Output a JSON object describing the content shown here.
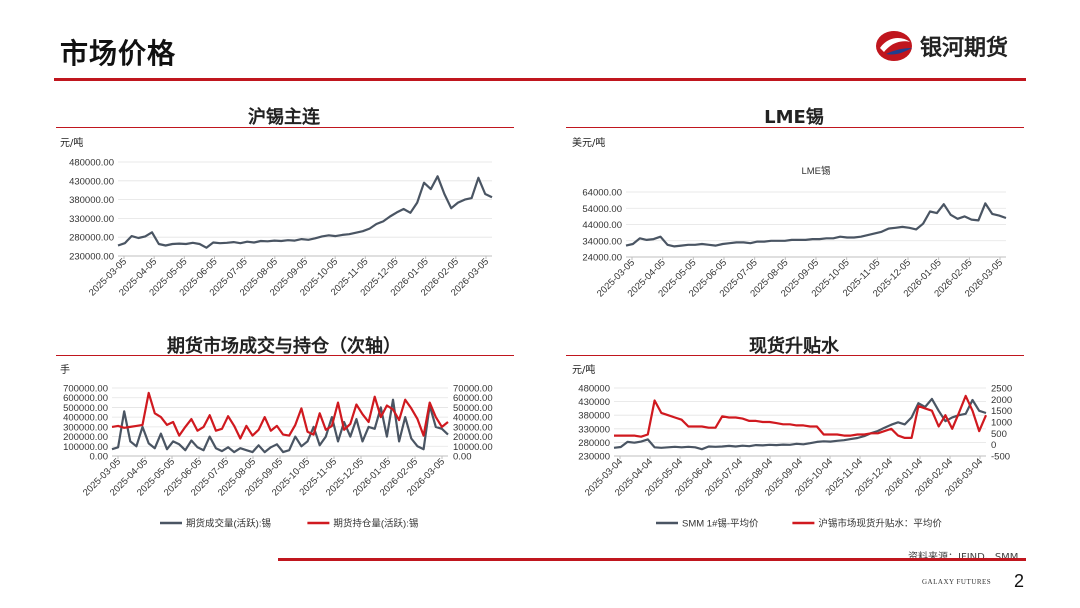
{
  "page": {
    "title": "市场价格",
    "brand": "银河期货",
    "source": "资料来源：IFIND、SMM",
    "footer_brand": "GALAXY FUTURES",
    "page_number": "2"
  },
  "colors": {
    "accent": "#c0161e",
    "series_dark": "#4a5563",
    "series_red": "#d0191f"
  },
  "panels": [
    {
      "title": "沪锡主连",
      "unit": "元/吨"
    },
    {
      "title": "LME锡",
      "unit": "美元/吨"
    },
    {
      "title": "期货市场成交与持仓（次轴）",
      "unit": "手"
    },
    {
      "title": "现货升贴水",
      "unit": "元/吨"
    }
  ],
  "chart_data": [
    {
      "type": "line",
      "title": "",
      "ylabel": "元/吨",
      "ylim": [
        230000,
        480000
      ],
      "yticks": [
        230000,
        280000,
        330000,
        380000,
        430000,
        480000
      ],
      "ytick_labels": [
        "230000.00",
        "280000.00",
        "330000.00",
        "380000.00",
        "430000.00",
        "480000.00"
      ],
      "x_labels": [
        "2025-03-05",
        "2025-04-05",
        "2025-05-05",
        "2025-06-05",
        "2025-07-05",
        "2025-08-05",
        "2025-09-05",
        "2025-10-05",
        "2025-11-05",
        "2025-12-05",
        "2026-01-05",
        "2026-02-05",
        "2026-03-05"
      ],
      "series": [
        {
          "values": [
            258000,
            264000,
            283000,
            278000,
            282000,
            293000,
            262000,
            258000,
            262000,
            263000,
            262000,
            265000,
            262000,
            252000,
            266000,
            264000,
            265000,
            267000,
            264000,
            268000,
            266000,
            270000,
            269000,
            271000,
            270000,
            272000,
            271000,
            275000,
            273000,
            277000,
            282000,
            285000,
            283000,
            286000,
            288000,
            292000,
            296000,
            303000,
            315000,
            322000,
            335000,
            346000,
            355000,
            345000,
            372000,
            425000,
            408000,
            442000,
            395000,
            357000,
            372000,
            380000,
            384000,
            438000,
            395000,
            386000
          ]
        }
      ]
    },
    {
      "type": "line",
      "title": "LME锡",
      "ylabel": "美元/吨",
      "ylim": [
        24000,
        64000
      ],
      "yticks": [
        24000,
        34000,
        44000,
        54000,
        64000
      ],
      "ytick_labels": [
        "24000.00",
        "34000.00",
        "44000.00",
        "54000.00",
        "64000.00"
      ],
      "x_labels": [
        "2025-03-05",
        "2025-04-05",
        "2025-05-05",
        "2025-06-05",
        "2025-07-05",
        "2025-08-05",
        "2025-09-05",
        "2025-10-05",
        "2025-11-05",
        "2025-12-05",
        "2026-01-05",
        "2026-02-05",
        "2026-03-05"
      ],
      "series": [
        {
          "values": [
            31000,
            32000,
            35500,
            34500,
            35000,
            36500,
            31500,
            30500,
            31000,
            31500,
            31500,
            32000,
            31500,
            31000,
            32000,
            32500,
            33000,
            33000,
            32500,
            33500,
            33500,
            34000,
            34000,
            34000,
            34500,
            34500,
            34500,
            35000,
            35000,
            35500,
            35500,
            36500,
            36000,
            36000,
            36500,
            37500,
            38500,
            39500,
            41500,
            42000,
            42500,
            42000,
            41000,
            44500,
            52000,
            51000,
            56500,
            50000,
            47500,
            49000,
            47000,
            46500,
            57000,
            50500,
            49500,
            48000
          ]
        }
      ]
    },
    {
      "type": "line",
      "title": "",
      "ylabel": "手",
      "ylim": [
        0,
        700000
      ],
      "yticks": [
        0,
        100000,
        200000,
        300000,
        400000,
        500000,
        600000,
        700000
      ],
      "ytick_labels": [
        "0.00",
        "100000.00",
        "200000.00",
        "300000.00",
        "400000.00",
        "500000.00",
        "600000.00",
        "700000.00"
      ],
      "y2lim": [
        0,
        70000
      ],
      "y2ticks": [
        0,
        10000,
        20000,
        30000,
        40000,
        50000,
        60000,
        70000
      ],
      "y2tick_labels": [
        "0.00",
        "10000.00",
        "20000.00",
        "30000.00",
        "40000.00",
        "50000.00",
        "60000.00",
        "70000.00"
      ],
      "x_labels": [
        "2025-03-05",
        "2025-04-05",
        "2025-05-05",
        "2025-06-05",
        "2025-07-05",
        "2025-08-05",
        "2025-09-05",
        "2025-10-05",
        "2025-11-05",
        "2025-12-05",
        "2026-01-05",
        "2026-02-05",
        "2026-03-05"
      ],
      "series": [
        {
          "name": "期货成交量(活跃):锡",
          "axis": "left",
          "values": [
            70000,
            90000,
            460000,
            150000,
            100000,
            300000,
            130000,
            80000,
            230000,
            70000,
            150000,
            120000,
            60000,
            160000,
            90000,
            60000,
            200000,
            80000,
            50000,
            90000,
            40000,
            80000,
            60000,
            40000,
            110000,
            40000,
            90000,
            120000,
            40000,
            60000,
            200000,
            100000,
            150000,
            300000,
            110000,
            200000,
            400000,
            150000,
            350000,
            200000,
            380000,
            150000,
            300000,
            280000,
            500000,
            200000,
            580000,
            150000,
            400000,
            180000,
            100000,
            70000,
            520000,
            300000,
            280000,
            220000
          ]
        },
        {
          "name": "期货持仓量(活跃):锡",
          "axis": "right",
          "values": [
            30000,
            31000,
            29000,
            30000,
            31000,
            32000,
            65000,
            44000,
            40000,
            32000,
            35000,
            21000,
            30000,
            38000,
            26000,
            30000,
            42000,
            26000,
            28000,
            41000,
            31000,
            18000,
            31000,
            21000,
            27000,
            40000,
            26000,
            31000,
            22000,
            21000,
            32000,
            49000,
            25000,
            22000,
            44000,
            27000,
            31000,
            55000,
            27000,
            33000,
            53000,
            43000,
            35000,
            61000,
            40000,
            52000,
            48000,
            37000,
            58000,
            49000,
            38000,
            21000,
            55000,
            40000,
            30000,
            35000
          ]
        }
      ],
      "legend": "bottom"
    },
    {
      "type": "line",
      "title": "",
      "ylabel": "元/吨",
      "ylim": [
        230000,
        480000
      ],
      "yticks": [
        230000,
        280000,
        330000,
        380000,
        430000,
        480000
      ],
      "ytick_labels": [
        "230000",
        "280000",
        "330000",
        "380000",
        "430000",
        "480000"
      ],
      "y2lim": [
        -500,
        2500
      ],
      "y2ticks": [
        -500,
        0,
        500,
        1000,
        1500,
        2000,
        2500
      ],
      "y2tick_labels": [
        "-500",
        "0",
        "500",
        "1000",
        "1500",
        "2000",
        "2500"
      ],
      "x_labels": [
        "2025-03-04",
        "2025-04-04",
        "2025-05-04",
        "2025-06-04",
        "2025-07-04",
        "2025-08-04",
        "2025-09-04",
        "2025-10-04",
        "2025-11-04",
        "2025-12-04",
        "2026-01-04",
        "2026-02-04",
        "2026-03-04"
      ],
      "series": [
        {
          "name": "SMM 1#锡-平均价",
          "axis": "left",
          "values": [
            260000,
            263000,
            282000,
            279000,
            283000,
            291000,
            262000,
            260000,
            262000,
            264000,
            262000,
            264000,
            262000,
            255000,
            265000,
            264000,
            265000,
            267000,
            265000,
            268000,
            266000,
            270000,
            269000,
            271000,
            270000,
            272000,
            271000,
            275000,
            273000,
            277000,
            282000,
            284000,
            283000,
            286000,
            288000,
            292000,
            296000,
            303000,
            314000,
            322000,
            334000,
            345000,
            354000,
            346000,
            372000,
            424000,
            410000,
            440000,
            396000,
            358000,
            372000,
            380000,
            385000,
            436000,
            396000,
            388000
          ]
        },
        {
          "name": "沪锡市场现货升贴水：平均价",
          "axis": "right",
          "values": [
            400,
            400,
            400,
            400,
            350,
            450,
            1950,
            1400,
            1300,
            1200,
            1100,
            800,
            800,
            800,
            750,
            750,
            1250,
            1200,
            1200,
            1150,
            1050,
            1050,
            1000,
            1000,
            950,
            900,
            900,
            850,
            850,
            800,
            800,
            450,
            450,
            450,
            400,
            400,
            450,
            450,
            500,
            500,
            600,
            700,
            400,
            300,
            300,
            1700,
            1600,
            1500,
            800,
            1300,
            700,
            1400,
            2150,
            1500,
            600,
            1300
          ]
        }
      ],
      "legend": "bottom"
    }
  ]
}
